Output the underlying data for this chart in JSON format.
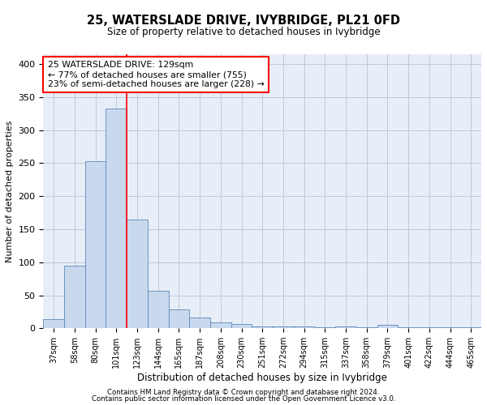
{
  "title": "25, WATERSLADE DRIVE, IVYBRIDGE, PL21 0FD",
  "subtitle": "Size of property relative to detached houses in Ivybridge",
  "xlabel": "Distribution of detached houses by size in Ivybridge",
  "ylabel": "Number of detached properties",
  "footnote1": "Contains HM Land Registry data © Crown copyright and database right 2024.",
  "footnote2": "Contains public sector information licensed under the Open Government Licence v3.0.",
  "bin_labels": [
    "37sqm",
    "58sqm",
    "80sqm",
    "101sqm",
    "123sqm",
    "144sqm",
    "165sqm",
    "187sqm",
    "208sqm",
    "230sqm",
    "251sqm",
    "272sqm",
    "294sqm",
    "315sqm",
    "337sqm",
    "358sqm",
    "379sqm",
    "401sqm",
    "422sqm",
    "444sqm",
    "465sqm"
  ],
  "bar_values": [
    14,
    95,
    253,
    333,
    165,
    57,
    29,
    16,
    9,
    6,
    3,
    3,
    3,
    1,
    3,
    1,
    5,
    1,
    1,
    1,
    2
  ],
  "bar_color": "#c9d9ed",
  "bar_edgecolor": "#5a87b8",
  "grid_color": "#c0c8d8",
  "bg_color": "#e8eef8",
  "annotation_text": "25 WATERSLADE DRIVE: 129sqm\n← 77% of detached houses are smaller (755)\n23% of semi-detached houses are larger (228) →",
  "annotation_box_color": "white",
  "annotation_box_edge": "red",
  "vline_color": "red",
  "vline_pos": 3.5,
  "ylim": [
    0,
    415
  ],
  "yticks": [
    0,
    50,
    100,
    150,
    200,
    250,
    300,
    350,
    400
  ]
}
